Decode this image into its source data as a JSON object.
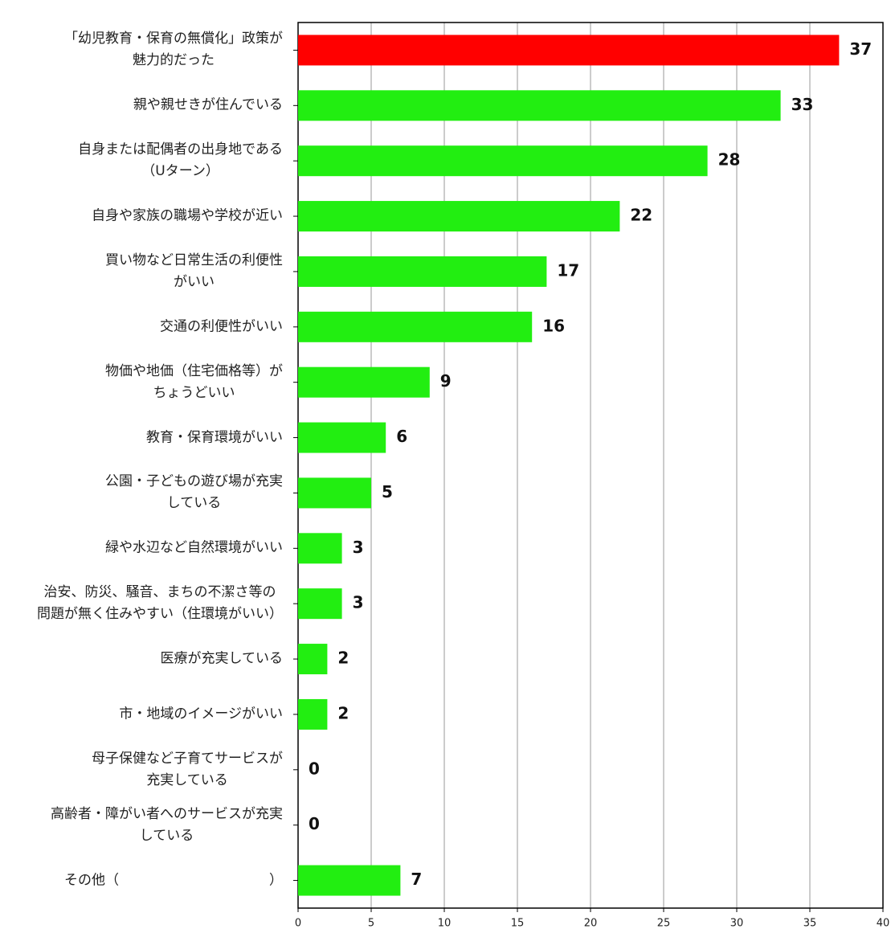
{
  "chart_data": {
    "type": "barh",
    "categories": [
      "「幼児教育・保育の無償化」政策が\n魅力的だった",
      "親や親せきが住んでいる",
      "自身または配偶者の出身地である\n（Uターン）",
      "自身や家族の職場や学校が近い",
      "買い物など日常生活の利便性\nがいい",
      "交通の利便性がいい",
      "物価や地価（住宅価格等）が\nちょうどいい",
      "教育・保育環境がいい",
      "公園・子どもの遊び場が充実\nしている",
      "緑や水辺など自然環境がいい",
      "治安、防災、騒音、まちの不潔さ等の\n問題が無く住みやすい（住環境がいい）",
      "医療が充実している",
      "市・地域のイメージがいい",
      "母子保健など子育てサービスが\n充実している",
      "高齢者・障がい者へのサービスが充実\nしている",
      "その他（　　　　　　　　　　　）"
    ],
    "values": [
      37,
      33,
      28,
      22,
      17,
      16,
      9,
      6,
      5,
      3,
      3,
      2,
      2,
      0,
      0,
      7
    ],
    "colors": [
      "#ff0000",
      "#22ee11",
      "#22ee11",
      "#22ee11",
      "#22ee11",
      "#22ee11",
      "#22ee11",
      "#22ee11",
      "#22ee11",
      "#22ee11",
      "#22ee11",
      "#22ee11",
      "#22ee11",
      "#22ee11",
      "#22ee11",
      "#22ee11"
    ],
    "xlim": [
      0,
      40
    ],
    "xticks": [
      0,
      5,
      10,
      15,
      20,
      25,
      30,
      35,
      40
    ],
    "grid": true
  }
}
